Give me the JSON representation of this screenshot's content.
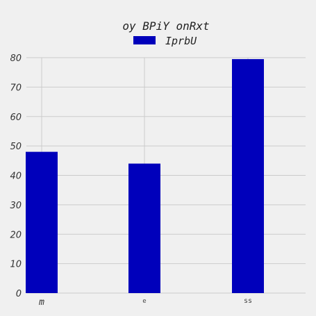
{
  "chart_data": {
    "type": "bar",
    "title": "oy BPiY onRxt",
    "xlabel": "",
    "ylabel": "",
    "categories": [
      "m",
      "e",
      "ss"
    ],
    "series": [
      {
        "name": "IprbU",
        "values": [
          48,
          44,
          79.5
        ]
      }
    ],
    "ylim": [
      0,
      80
    ],
    "yticks": [
      0,
      10,
      20,
      30,
      40,
      50,
      60,
      70,
      80
    ],
    "grid": true,
    "legend": "top-center",
    "colors": {
      "bar": "#0000bb",
      "background": "#f0f0f0",
      "grid": "#cbcbcb"
    }
  }
}
